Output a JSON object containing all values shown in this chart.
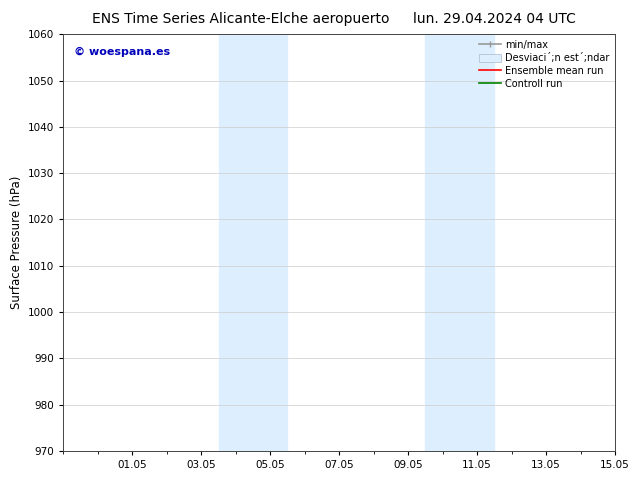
{
  "title_left": "ENS Time Series Alicante-Elche aeropuerto",
  "title_right": "lun. 29.04.2024 04 UTC",
  "ylabel": "Surface Pressure (hPa)",
  "ylim": [
    970,
    1060
  ],
  "yticks": [
    970,
    980,
    990,
    1000,
    1010,
    1020,
    1030,
    1040,
    1050,
    1060
  ],
  "xtick_labels": [
    "01.05",
    "03.05",
    "05.05",
    "07.05",
    "09.05",
    "11.05",
    "13.05",
    "15.05"
  ],
  "xtick_positions": [
    2,
    4,
    6,
    8,
    10,
    12,
    14,
    16
  ],
  "xlim": [
    0,
    16
  ],
  "watermark": "© woespana.es",
  "watermark_color": "#0000bb",
  "shaded_regions": [
    {
      "xmin": 4.5,
      "xmax": 6.5
    },
    {
      "xmin": 10.5,
      "xmax": 12.5
    }
  ],
  "shaded_color": "#ddeeff",
  "bg_color": "#ffffff",
  "plot_bg_color": "#ffffff",
  "grid_color": "#cccccc",
  "title_fontsize": 10,
  "tick_fontsize": 7.5,
  "label_fontsize": 8.5,
  "legend_fontsize": 7,
  "watermark_fontsize": 8
}
